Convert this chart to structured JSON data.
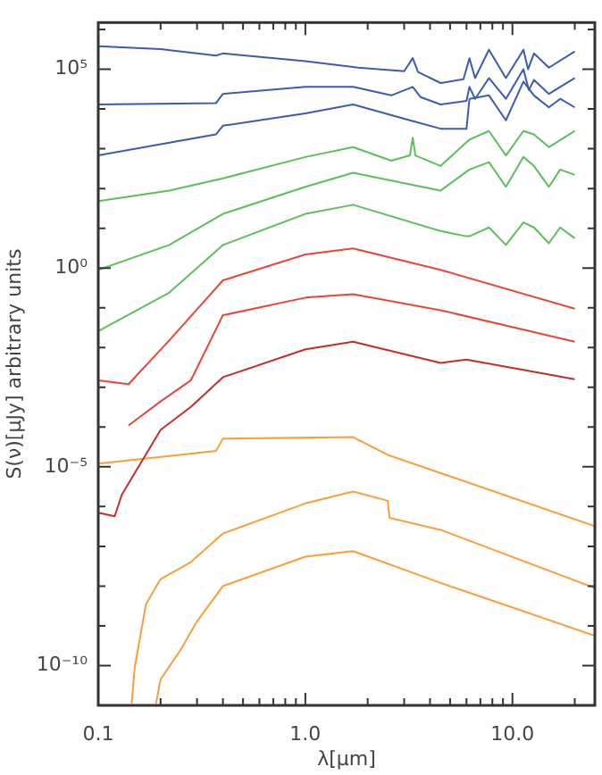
{
  "chart_data": {
    "type": "line",
    "xlabel": "λ[μm]",
    "ylabel": "S(ν)[μJy] arbitrary units",
    "log": "xy",
    "grid": false,
    "legend": false,
    "marker": "none",
    "line_style": "solid",
    "xlim": [
      0.1,
      25
    ],
    "ylim": [
      1e-11,
      1500000.0
    ],
    "xticks": [
      {
        "value": 0.1,
        "label": "0.1"
      },
      {
        "value": 0.2,
        "label": null
      },
      {
        "value": 0.3,
        "label": null
      },
      {
        "value": 0.4,
        "label": null
      },
      {
        "value": 0.5,
        "label": null
      },
      {
        "value": 0.6,
        "label": null
      },
      {
        "value": 0.7,
        "label": null
      },
      {
        "value": 0.8,
        "label": null
      },
      {
        "value": 0.9,
        "label": null
      },
      {
        "value": 1,
        "label": "1.0"
      },
      {
        "value": 2,
        "label": null
      },
      {
        "value": 3,
        "label": null
      },
      {
        "value": 4,
        "label": null
      },
      {
        "value": 5,
        "label": null
      },
      {
        "value": 6,
        "label": null
      },
      {
        "value": 7,
        "label": null
      },
      {
        "value": 8,
        "label": null
      },
      {
        "value": 9,
        "label": null
      },
      {
        "value": 10,
        "label": "10.0"
      },
      {
        "value": 20,
        "label": null
      }
    ],
    "yticks": [
      {
        "value": 1e-11,
        "label": null
      },
      {
        "value": 1e-10,
        "label": "10⁻¹⁰"
      },
      {
        "value": 1e-09,
        "label": null
      },
      {
        "value": 1e-08,
        "label": null
      },
      {
        "value": 1e-07,
        "label": null
      },
      {
        "value": 1e-06,
        "label": null
      },
      {
        "value": 1e-05,
        "label": "10⁻⁵"
      },
      {
        "value": 0.0001,
        "label": null
      },
      {
        "value": 0.001,
        "label": null
      },
      {
        "value": 0.01,
        "label": null
      },
      {
        "value": 0.1,
        "label": null
      },
      {
        "value": 1,
        "label": "10⁰"
      },
      {
        "value": 10,
        "label": null
      },
      {
        "value": 100,
        "label": null
      },
      {
        "value": 1000,
        "label": null
      },
      {
        "value": 10000.0,
        "label": null
      },
      {
        "value": 100000.0,
        "label": "10⁵"
      },
      {
        "value": 1000000.0,
        "label": null
      }
    ],
    "series": [
      {
        "color": "#3a5cb0",
        "x": [
          0.1,
          0.2,
          0.37,
          0.4,
          1.0,
          1.8,
          3.0,
          3.3,
          3.5,
          4.5,
          5.8,
          6.2,
          6.6,
          7.7,
          9.3,
          11.3,
          11.9,
          12.7,
          15,
          20
        ],
        "values": [
          380000.0,
          320000.0,
          220000.0,
          250000.0,
          160000.0,
          110000.0,
          89000.0,
          190000.0,
          85000.0,
          45000.0,
          56000.0,
          190000.0,
          60000.0,
          310000.0,
          60000.0,
          310000.0,
          100000.0,
          250000.0,
          110000.0,
          280000.0
        ]
      },
      {
        "color": "#3a5cb0",
        "x": [
          0.1,
          0.37,
          0.4,
          1.0,
          1.7,
          2.6,
          3.3,
          3.6,
          4.5,
          6.0,
          6.2,
          6.6,
          7.7,
          9.3,
          11.3,
          12.0,
          12.7,
          15,
          20
        ],
        "values": [
          13000.0,
          14000.0,
          24000.0,
          36000.0,
          36000.0,
          22000.0,
          36000.0,
          20000.0,
          13000.0,
          16000.0,
          36000.0,
          18000.0,
          60000.0,
          18000.0,
          100000.0,
          30000.0,
          54000.0,
          24000.0,
          60000.0
        ]
      },
      {
        "color": "#3a5cb0",
        "x": [
          0.1,
          0.37,
          0.4,
          1.0,
          1.7,
          3.2,
          4.5,
          6.0,
          6.2,
          7.7,
          9.3,
          11.3,
          12.7,
          15,
          17,
          20
        ],
        "values": [
          680,
          2300,
          3800,
          7800,
          13000.0,
          5200,
          3200,
          3200,
          18000.0,
          22000.0,
          5200,
          49000.0,
          22000.0,
          11000.0,
          18000.0,
          11000.0
        ]
      },
      {
        "color": "#5cbe5c",
        "x": [
          0.1,
          0.22,
          0.4,
          1.0,
          1.7,
          2.6,
          3.2,
          3.3,
          3.4,
          4.5,
          6.2,
          7.7,
          9.3,
          11.3,
          12.7,
          15,
          20
        ],
        "values": [
          48,
          89,
          180,
          620,
          1100,
          500,
          680,
          1900,
          680,
          370,
          1700,
          2800,
          680,
          2800,
          2300,
          1100,
          2800
        ]
      },
      {
        "color": "#5cbe5c",
        "x": [
          0.1,
          0.22,
          0.4,
          1.0,
          1.7,
          4.5,
          6.2,
          7.7,
          9.3,
          11.3,
          12.7,
          15,
          17,
          20
        ],
        "values": [
          0.9,
          3.8,
          23,
          110,
          250,
          89,
          300,
          460,
          110,
          620,
          370,
          110,
          300,
          220
        ]
      },
      {
        "color": "#5cbe5c",
        "x": [
          0.1,
          0.22,
          0.4,
          1.0,
          1.7,
          4.5,
          6.0,
          6.2,
          7.7,
          9.3,
          11.3,
          12.7,
          15,
          17,
          20
        ],
        "values": [
          0.026,
          0.24,
          3.8,
          23,
          39,
          8.5,
          6.3,
          6.3,
          10.5,
          3.8,
          14,
          10.5,
          4.2,
          10.5,
          5.6
        ]
      },
      {
        "color": "#e04a3a",
        "x": [
          0.1,
          0.14,
          0.22,
          0.4,
          1.0,
          1.7,
          4.5,
          20
        ],
        "values": [
          0.0015,
          0.0012,
          0.015,
          0.49,
          2.2,
          3.1,
          0.9,
          0.095
        ]
      },
      {
        "color": "#e04a3a",
        "x": [
          0.14,
          0.2,
          0.28,
          0.4,
          1.0,
          1.7,
          4.5,
          20
        ],
        "values": [
          0.00011,
          0.00044,
          0.0015,
          0.065,
          0.18,
          0.22,
          0.087,
          0.014
        ]
      },
      {
        "color": "#c0302a",
        "x": [
          0.1,
          0.12,
          0.13,
          0.2,
          0.28,
          0.4,
          1.0,
          1.7,
          4.5,
          6,
          20
        ],
        "values": [
          7e-07,
          5.7e-07,
          2e-06,
          8.5e-05,
          0.00032,
          0.0018,
          0.009,
          0.014,
          0.0041,
          0.005,
          0.0016
        ]
      },
      {
        "color": "#f5a040",
        "x": [
          0.1,
          0.37,
          0.4,
          1.7,
          2.5,
          25
        ],
        "values": [
          1.2e-05,
          2.5e-05,
          5.1e-05,
          5.6e-05,
          2e-05,
          3.2e-07
        ]
      },
      {
        "color": "#f5a040",
        "x": [
          0.145,
          0.15,
          0.17,
          0.2,
          0.28,
          0.4,
          1.0,
          1.7,
          2.5,
          2.55,
          4.5,
          25
        ],
        "values": [
          1.1e-11,
          9e-11,
          3.5e-09,
          1.5e-08,
          4e-08,
          2.1e-07,
          1.2e-06,
          2.4e-06,
          1.4e-06,
          5.2e-07,
          2.6e-07,
          8.9e-09
        ]
      },
      {
        "color": "#f5a040",
        "x": [
          0.19,
          0.2,
          0.25,
          0.3,
          0.4,
          1.0,
          1.7,
          4.5,
          25
        ],
        "values": [
          1.1e-11,
          4.5e-11,
          2.5e-10,
          1.3e-09,
          1e-08,
          5.5e-08,
          7.6e-08,
          1.2e-08,
          5.6e-10
        ]
      }
    ]
  }
}
